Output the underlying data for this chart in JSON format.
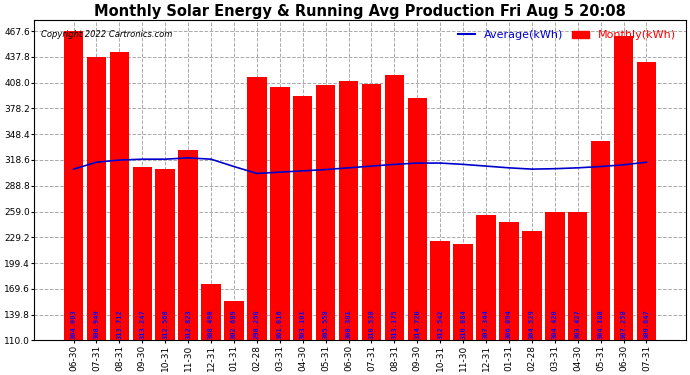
{
  "title": "Monthly Solar Energy & Running Avg Production Fri Aug 5 20:08",
  "copyright": "Copyright 2022 Cartronics.com",
  "legend_avg": "Average(kWh)",
  "legend_monthly": "Monthly(kWh)",
  "categories": [
    "06-30",
    "07-31",
    "08-31",
    "09-30",
    "10-31",
    "11-30",
    "12-31",
    "01-31",
    "02-28",
    "03-31",
    "04-30",
    "05-31",
    "06-30",
    "07-31",
    "08-31",
    "09-30",
    "10-31",
    "11-30",
    "12-31",
    "01-31",
    "02-28",
    "03-31",
    "04-30",
    "05-31",
    "06-30",
    "07-31"
  ],
  "monthly_values": [
    467.6,
    437.8,
    443.0,
    310.0,
    308.0,
    330.0,
    175.0,
    155.0,
    415.0,
    403.0,
    393.0,
    405.5,
    410.0,
    406.0,
    417.0,
    390.0,
    225.0,
    222.0,
    255.0,
    247.0,
    236.0,
    258.0,
    259.0,
    340.0,
    462.0,
    432.0
  ],
  "bar_labels": [
    "304.003",
    "308.949",
    "313.712",
    "313.247",
    "312.568",
    "312.823",
    "308.498",
    "302.689",
    "298.250",
    "301.016",
    "303.101",
    "305.558",
    "308.301",
    "310.538",
    "313.175",
    "314.720",
    "312.542",
    "310.884",
    "307.344",
    "306.094",
    "304.529",
    "304.420",
    "303.427",
    "304.188",
    "307.258",
    "309.647"
  ],
  "average_values": [
    308.0,
    316.0,
    318.5,
    319.5,
    319.5,
    321.0,
    319.5,
    311.0,
    303.0,
    304.5,
    306.0,
    307.5,
    309.5,
    311.5,
    313.5,
    315.0,
    315.0,
    313.5,
    311.5,
    309.5,
    308.0,
    308.5,
    309.5,
    311.0,
    313.0,
    316.0
  ],
  "ylim_min": 110.0,
  "ylim_max": 480.0,
  "ytick_vals": [
    110.0,
    139.8,
    169.6,
    199.4,
    229.2,
    259.0,
    288.8,
    318.6,
    348.4,
    378.2,
    408.0,
    437.8,
    467.6
  ],
  "bar_color": "#ff0000",
  "line_color": "#0000cc",
  "bg_color": "#ffffff",
  "grid_color": "#aaaaaa",
  "title_fontsize": 10.5,
  "axis_label_fontsize": 6.5,
  "bar_label_fontsize": 5.0,
  "copyright_fontsize": 6.0,
  "legend_fontsize": 8.0,
  "legend_avg_color": "#0000cc",
  "legend_monthly_color": "#ff0000"
}
